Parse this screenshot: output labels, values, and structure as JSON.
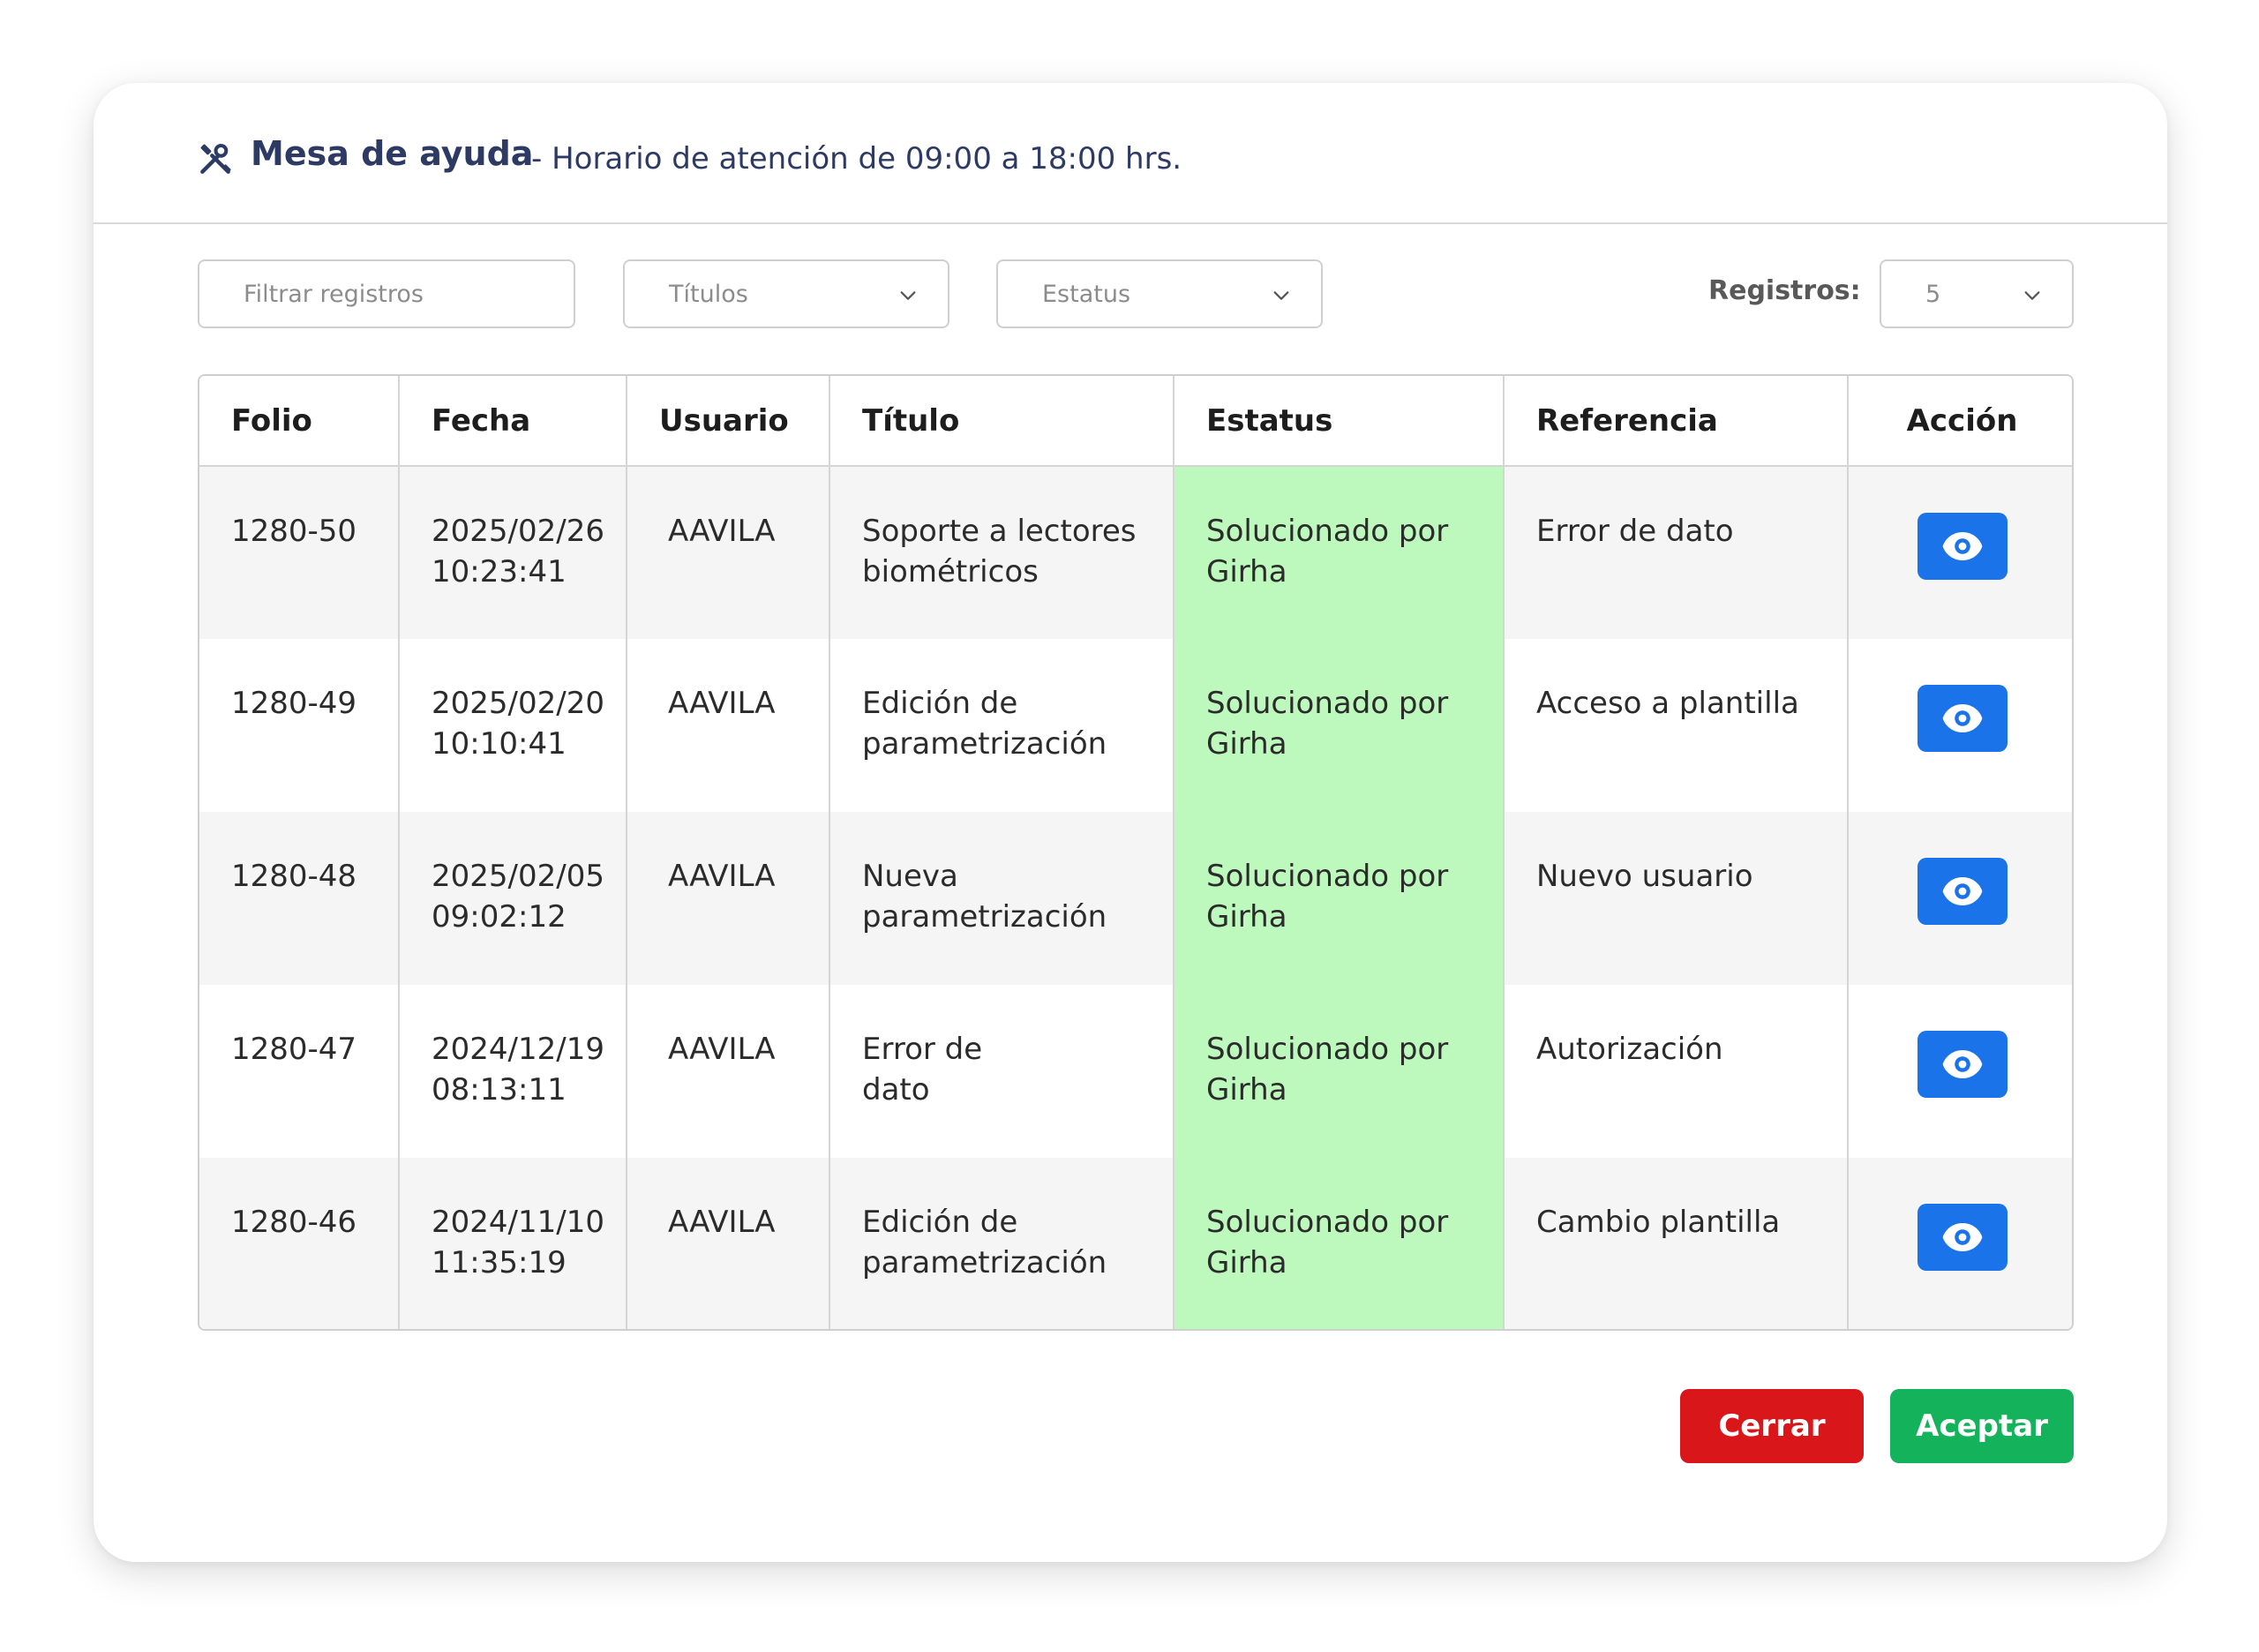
{
  "header": {
    "icon": "tools-icon",
    "title": "Mesa de ayuda",
    "subtitle": "- Horario de atención de 09:00 a 18:00 hrs."
  },
  "filters": {
    "search_placeholder": "Filtrar registros",
    "titulos_label": "Títulos",
    "estatus_label": "Estatus",
    "registros_label": "Registros:",
    "registros_value": "5"
  },
  "table": {
    "columns": [
      "Folio",
      "Fecha",
      "Usuario",
      "Título",
      "Estatus",
      "Referencia",
      "Acción"
    ],
    "rows": [
      {
        "folio": "1280-50",
        "fecha_date": "2025/02/26",
        "fecha_time": "10:23:41",
        "usuario": "AAVILA",
        "titulo_1": "Soporte a lectores",
        "titulo_2": "biométricos",
        "estatus_1": "Solucionado por",
        "estatus_2": "Girha",
        "referencia": "Error de dato"
      },
      {
        "folio": "1280-49",
        "fecha_date": "2025/02/20",
        "fecha_time": "10:10:41",
        "usuario": "AAVILA",
        "titulo_1": "Edición de",
        "titulo_2": "parametrización",
        "estatus_1": "Solucionado por",
        "estatus_2": "Girha",
        "referencia": "Acceso a plantilla"
      },
      {
        "folio": "1280-48",
        "fecha_date": "2025/02/05",
        "fecha_time": "09:02:12",
        "usuario": "AAVILA",
        "titulo_1": "Nueva",
        "titulo_2": "parametrización",
        "estatus_1": "Solucionado por",
        "estatus_2": "Girha",
        "referencia": "Nuevo usuario"
      },
      {
        "folio": "1280-47",
        "fecha_date": "2024/12/19",
        "fecha_time": "08:13:11",
        "usuario": "AAVILA",
        "titulo_1": "Error de",
        "titulo_2": "dato",
        "estatus_1": "Solucionado por",
        "estatus_2": "Girha",
        "referencia": "Autorización"
      },
      {
        "folio": "1280-46",
        "fecha_date": "2024/11/10",
        "fecha_time": "11:35:19",
        "usuario": "AAVILA",
        "titulo_1": "Edición de",
        "titulo_2": "parametrización",
        "estatus_1": "Solucionado por",
        "estatus_2": "Girha",
        "referencia": "Cambio plantilla"
      }
    ]
  },
  "colors": {
    "accent_blue": "#1a73e8",
    "status_green": "#bdf8bd",
    "close_red": "#d9161a",
    "accept_green": "#14b25a",
    "title_navy": "#2d3a63"
  },
  "actions": {
    "view_icon": "eye-icon",
    "cerrar_label": "Cerrar",
    "aceptar_label": "Aceptar"
  }
}
